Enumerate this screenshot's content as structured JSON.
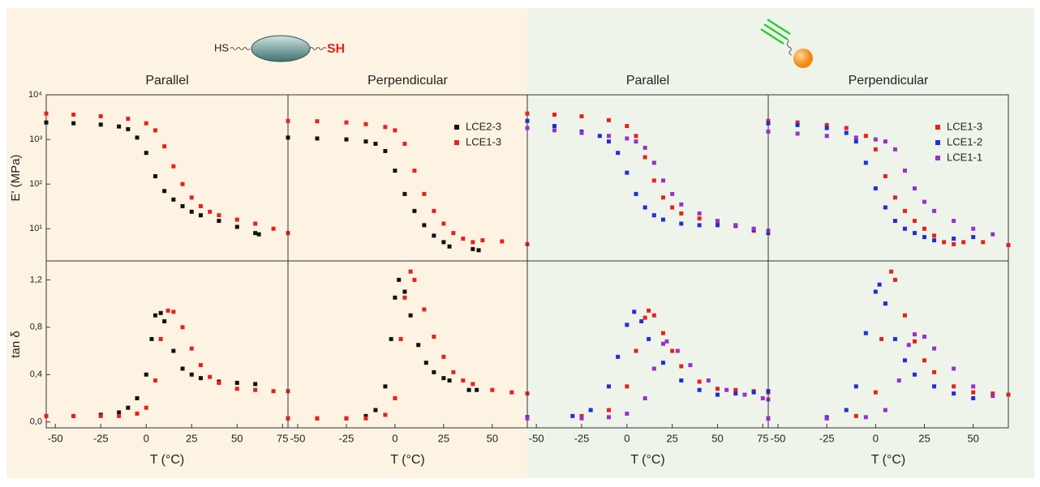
{
  "header": {
    "left_molecule": {
      "left_group": "HS",
      "right_group": "SH"
    }
  },
  "chart_data": [
    {
      "type": "scatter",
      "title": "Parallel",
      "ylabel": "E' (MPa)",
      "ylog": true,
      "xlim": [
        -55,
        78
      ],
      "ylim": [
        1.9,
        10000
      ],
      "yticks": [
        {
          "value": 10,
          "label": "10¹"
        },
        {
          "value": 100,
          "label": "10²"
        },
        {
          "value": 1000,
          "label": "10³"
        },
        {
          "value": 10000,
          "label": "10⁴"
        }
      ],
      "series": [
        {
          "color": "#111111",
          "x": [
            -55,
            -40,
            -25,
            -15,
            -10,
            -5,
            0,
            5,
            10,
            15,
            20,
            25,
            30,
            40,
            50,
            60,
            62
          ],
          "values": [
            2400,
            2300,
            2150,
            1950,
            1700,
            1100,
            500,
            150,
            70,
            45,
            32,
            24,
            20,
            15,
            11,
            8,
            7.5
          ]
        },
        {
          "color": "#e8211c",
          "x": [
            -55,
            -40,
            -25,
            -10,
            0,
            5,
            10,
            15,
            20,
            25,
            30,
            35,
            40,
            50,
            60,
            70,
            78
          ],
          "values": [
            3800,
            3600,
            3300,
            2900,
            2300,
            1600,
            700,
            250,
            100,
            50,
            32,
            24,
            20,
            16,
            13,
            10,
            8
          ]
        }
      ]
    },
    {
      "type": "scatter",
      "title": "Perpendicular",
      "ylog": true,
      "xlim": [
        -55,
        68
      ],
      "ylim": [
        1.9,
        10000
      ],
      "legend": "upper right",
      "series": [
        {
          "name": "LCE2-3",
          "color": "#111111",
          "x": [
            -55,
            -40,
            -25,
            -15,
            -10,
            -5,
            0,
            5,
            10,
            15,
            20,
            25,
            28,
            40,
            43
          ],
          "values": [
            1100,
            1050,
            1000,
            900,
            800,
            550,
            200,
            60,
            25,
            12,
            7,
            5,
            4,
            3.5,
            3.3
          ]
        },
        {
          "name": "LCE1-3",
          "color": "#e8211c",
          "x": [
            -55,
            -40,
            -25,
            -15,
            -5,
            0,
            5,
            10,
            15,
            20,
            25,
            30,
            35,
            40,
            45,
            55,
            68
          ],
          "values": [
            2600,
            2550,
            2400,
            2200,
            1900,
            1600,
            800,
            200,
            60,
            25,
            13,
            8,
            6,
            5,
            5.5,
            5.2,
            4.5
          ]
        }
      ]
    },
    {
      "type": "scatter",
      "title": "Parallel",
      "ylog": true,
      "xlim": [
        -55,
        78
      ],
      "ylim": [
        1.9,
        10000
      ],
      "series": [
        {
          "color": "#e8211c",
          "x": [
            -55,
            -40,
            -25,
            -10,
            0,
            5,
            10,
            15,
            20,
            25,
            30,
            40,
            50,
            60,
            70,
            78
          ],
          "values": [
            3800,
            3600,
            3300,
            2700,
            2000,
            1200,
            400,
            120,
            50,
            30,
            22,
            17,
            14,
            12,
            9,
            8
          ]
        },
        {
          "color": "#1f2fd6",
          "x": [
            -55,
            -40,
            -25,
            -15,
            -10,
            -5,
            0,
            5,
            10,
            15,
            20,
            30,
            40,
            50,
            60,
            70,
            78
          ],
          "values": [
            2600,
            2000,
            1500,
            1200,
            900,
            500,
            180,
            60,
            30,
            20,
            16,
            13,
            12,
            12,
            11.5,
            9.5,
            8
          ]
        },
        {
          "color": "#9b30c8",
          "x": [
            -55,
            -40,
            -25,
            -10,
            0,
            5,
            10,
            15,
            20,
            25,
            30,
            40,
            50,
            60,
            70,
            78
          ],
          "values": [
            1800,
            1600,
            1400,
            1200,
            1050,
            900,
            650,
            300,
            120,
            60,
            35,
            22,
            15,
            12,
            10,
            9
          ]
        }
      ]
    },
    {
      "type": "scatter",
      "title": "Perpendicular",
      "ylog": true,
      "xlim": [
        -55,
        68
      ],
      "ylim": [
        1.9,
        10000
      ],
      "legend": "upper right",
      "series": [
        {
          "name": "LCE1-3",
          "color": "#e8211c",
          "x": [
            -55,
            -40,
            -25,
            -15,
            -5,
            0,
            5,
            10,
            15,
            20,
            25,
            30,
            35,
            40,
            45,
            55,
            68
          ],
          "values": [
            2600,
            2400,
            2100,
            1800,
            1200,
            600,
            150,
            50,
            25,
            15,
            10,
            7,
            5,
            4.5,
            5,
            5,
            4.3
          ]
        },
        {
          "name": "LCE1-2",
          "color": "#1f2fd6",
          "x": [
            -55,
            -40,
            -25,
            -15,
            -10,
            -5,
            0,
            5,
            10,
            15,
            20,
            25,
            30,
            40,
            50
          ],
          "values": [
            2300,
            2100,
            1800,
            1400,
            900,
            300,
            80,
            30,
            15,
            10,
            8,
            6.5,
            5.5,
            6,
            6.5
          ]
        },
        {
          "name": "LCE1-1",
          "color": "#9b30c8",
          "x": [
            -55,
            -40,
            -25,
            -10,
            0,
            5,
            10,
            15,
            20,
            25,
            30,
            40,
            50,
            60
          ],
          "values": [
            1500,
            1350,
            1200,
            1100,
            1000,
            900,
            600,
            200,
            80,
            40,
            25,
            15,
            10,
            7.5
          ]
        }
      ]
    },
    {
      "type": "scatter",
      "xlabel": "T (°C)",
      "ylabel": "tan δ",
      "xlim": [
        -55,
        78
      ],
      "ylim": [
        -0.05,
        1.36
      ],
      "xticks": [
        -50,
        -25,
        0,
        25,
        50,
        75
      ],
      "yticks": [
        {
          "value": 0,
          "label": "0,0"
        },
        {
          "value": 0.4,
          "label": "0,4"
        },
        {
          "value": 0.8,
          "label": "0,8"
        },
        {
          "value": 1.2,
          "label": "1,2"
        }
      ],
      "series": [
        {
          "color": "#111111",
          "x": [
            -55,
            -40,
            -25,
            -15,
            -10,
            -5,
            0,
            3,
            5,
            8,
            10,
            15,
            20,
            25,
            30,
            40,
            50,
            60
          ],
          "values": [
            0.05,
            0.05,
            0.06,
            0.08,
            0.12,
            0.2,
            0.4,
            0.7,
            0.9,
            0.92,
            0.85,
            0.6,
            0.45,
            0.4,
            0.37,
            0.34,
            0.33,
            0.32
          ]
        },
        {
          "color": "#e8211c",
          "x": [
            -55,
            -40,
            -25,
            -15,
            -5,
            0,
            5,
            8,
            12,
            15,
            20,
            25,
            30,
            35,
            40,
            50,
            60,
            70,
            78
          ],
          "values": [
            0.05,
            0.05,
            0.05,
            0.05,
            0.07,
            0.12,
            0.35,
            0.7,
            0.94,
            0.93,
            0.8,
            0.62,
            0.48,
            0.38,
            0.33,
            0.28,
            0.27,
            0.26,
            0.26
          ]
        }
      ]
    },
    {
      "type": "scatter",
      "xlabel": "T (°C)",
      "xlim": [
        -55,
        68
      ],
      "ylim": [
        -0.05,
        1.36
      ],
      "xticks": [
        -50,
        -25,
        0,
        25,
        50
      ],
      "series": [
        {
          "color": "#111111",
          "x": [
            -55,
            -40,
            -25,
            -15,
            -10,
            -5,
            -2,
            0,
            2,
            5,
            8,
            12,
            16,
            20,
            25,
            28,
            38,
            42
          ],
          "values": [
            0.03,
            0.03,
            0.03,
            0.05,
            0.1,
            0.3,
            0.7,
            1.05,
            1.2,
            1.1,
            0.9,
            0.65,
            0.5,
            0.42,
            0.37,
            0.35,
            0.27,
            0.27
          ]
        },
        {
          "color": "#e8211c",
          "x": [
            -55,
            -40,
            -25,
            -15,
            -5,
            0,
            3,
            5,
            8,
            10,
            15,
            20,
            25,
            30,
            35,
            40,
            50,
            60,
            68
          ],
          "values": [
            0.03,
            0.03,
            0.03,
            0.03,
            0.06,
            0.2,
            0.7,
            1.05,
            1.27,
            1.2,
            0.95,
            0.72,
            0.55,
            0.42,
            0.35,
            0.32,
            0.27,
            0.25,
            0.24
          ]
        }
      ]
    },
    {
      "type": "scatter",
      "xlabel": "T (°C)",
      "xlim": [
        -55,
        78
      ],
      "ylim": [
        -0.05,
        1.36
      ],
      "xticks": [
        -50,
        -25,
        0,
        25,
        50,
        75
      ],
      "series": [
        {
          "color": "#e8211c",
          "x": [
            -55,
            -25,
            -10,
            0,
            5,
            10,
            12,
            15,
            20,
            25,
            30,
            40,
            50,
            60,
            70,
            78
          ],
          "values": [
            0.04,
            0.05,
            0.1,
            0.3,
            0.6,
            0.88,
            0.94,
            0.9,
            0.75,
            0.6,
            0.47,
            0.34,
            0.28,
            0.27,
            0.26,
            0.25
          ]
        },
        {
          "color": "#1f2fd6",
          "x": [
            -55,
            -30,
            -20,
            -10,
            -5,
            0,
            4,
            8,
            12,
            20,
            30,
            40,
            50,
            60,
            70,
            78
          ],
          "values": [
            0.04,
            0.05,
            0.1,
            0.3,
            0.55,
            0.82,
            0.93,
            0.85,
            0.7,
            0.5,
            0.35,
            0.27,
            0.23,
            0.24,
            0.25,
            0.26
          ]
        },
        {
          "color": "#9b30c8",
          "x": [
            -55,
            -25,
            -10,
            0,
            10,
            15,
            20,
            22,
            28,
            35,
            45,
            55,
            65,
            75,
            78
          ],
          "values": [
            0.03,
            0.03,
            0.04,
            0.07,
            0.2,
            0.45,
            0.66,
            0.68,
            0.6,
            0.48,
            0.35,
            0.27,
            0.23,
            0.2,
            0.19
          ]
        }
      ]
    },
    {
      "type": "scatter",
      "xlabel": "T (°C)",
      "xlim": [
        -55,
        68
      ],
      "ylim": [
        -0.05,
        1.36
      ],
      "xticks": [
        -50,
        -25,
        0,
        25,
        50
      ],
      "series": [
        {
          "color": "#e8211c",
          "x": [
            -55,
            -25,
            -10,
            0,
            3,
            5,
            8,
            10,
            15,
            20,
            25,
            30,
            40,
            50,
            60,
            68
          ],
          "values": [
            0.03,
            0.03,
            0.05,
            0.25,
            0.7,
            1.0,
            1.27,
            1.2,
            0.9,
            0.68,
            0.52,
            0.42,
            0.3,
            0.25,
            0.24,
            0.23
          ]
        },
        {
          "color": "#1f2fd6",
          "x": [
            -55,
            -25,
            -15,
            -10,
            -5,
            0,
            2,
            5,
            10,
            15,
            20,
            30,
            40,
            50
          ],
          "values": [
            0.03,
            0.04,
            0.1,
            0.3,
            0.75,
            1.1,
            1.16,
            1.0,
            0.7,
            0.52,
            0.4,
            0.3,
            0.24,
            0.2
          ]
        },
        {
          "color": "#9b30c8",
          "x": [
            -55,
            -25,
            -5,
            5,
            12,
            17,
            20,
            25,
            30,
            40,
            50,
            60
          ],
          "values": [
            0.03,
            0.03,
            0.04,
            0.1,
            0.35,
            0.65,
            0.74,
            0.72,
            0.62,
            0.45,
            0.3,
            0.22
          ]
        }
      ]
    }
  ]
}
